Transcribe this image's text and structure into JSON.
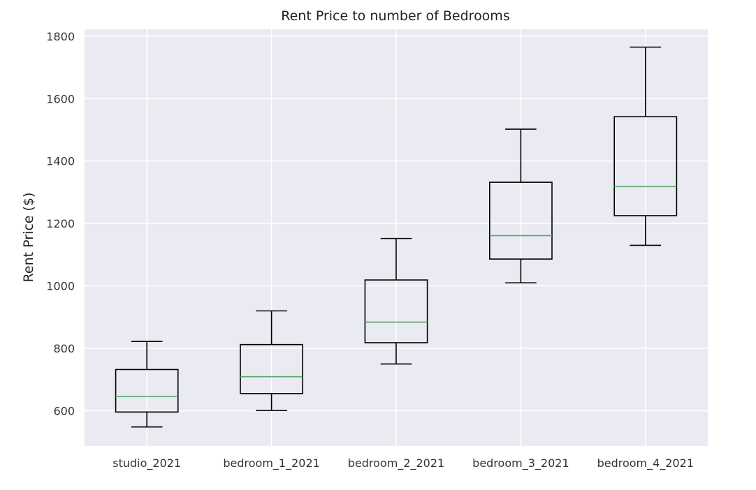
{
  "chart_data": {
    "type": "box",
    "title": "Rent Price to number of Bedrooms",
    "xlabel": "",
    "ylabel": "Rent Price ($)",
    "ylim": [
      487,
      1822
    ],
    "yticks": [
      600,
      800,
      1000,
      1200,
      1400,
      1600,
      1800
    ],
    "grid": true,
    "categories": [
      "studio_2021",
      "bedroom_1_2021",
      "bedroom_2_2021",
      "bedroom_3_2021",
      "bedroom_4_2021"
    ],
    "boxes": [
      {
        "whisker_low": 548,
        "q1": 596,
        "median": 646,
        "q3": 732,
        "whisker_high": 822
      },
      {
        "whisker_low": 601,
        "q1": 655,
        "median": 709,
        "q3": 812,
        "whisker_high": 920
      },
      {
        "whisker_low": 750,
        "q1": 818,
        "median": 884,
        "q3": 1019,
        "whisker_high": 1152
      },
      {
        "whisker_low": 1010,
        "q1": 1086,
        "median": 1161,
        "q3": 1332,
        "whisker_high": 1502
      },
      {
        "whisker_low": 1130,
        "q1": 1225,
        "median": 1318,
        "q3": 1542,
        "whisker_high": 1765
      }
    ],
    "colors": {
      "background": "#eaeaf2",
      "grid": "#ffffff",
      "box": "#000000",
      "median": "#55a868"
    }
  }
}
